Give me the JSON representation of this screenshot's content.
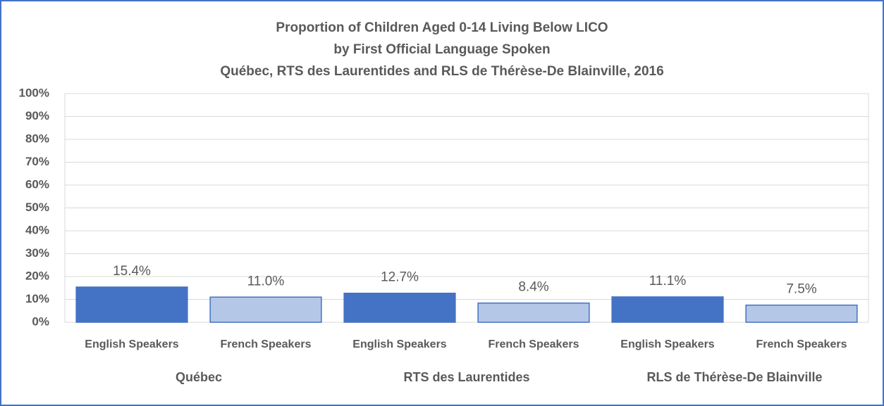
{
  "chart_data": {
    "type": "bar",
    "title": [
      "Proportion of Children Aged 0-14 Living Below LICO",
      "by First Official Language Spoken",
      "Québec, RTS des Laurentides and RLS de Thérèse-De Blainville, 2016"
    ],
    "categories": [
      "Québec",
      "RTS des Laurentides",
      "RLS de Thérèse-De Blainville"
    ],
    "series": [
      {
        "name": "English Speakers",
        "color": "#4472c4",
        "values": [
          15.4,
          12.7,
          11.1
        ],
        "value_labels": [
          "15.4%",
          "12.7%",
          "11.1%"
        ]
      },
      {
        "name": "French Speakers",
        "color": "#b4c7e7",
        "values": [
          11.0,
          8.4,
          7.5
        ],
        "value_labels": [
          "11.0%",
          "8.4%",
          "7.5%"
        ]
      }
    ],
    "ylim": [
      0,
      100
    ],
    "yticks": [
      {
        "value": 0,
        "label": "0%"
      },
      {
        "value": 10,
        "label": "10%"
      },
      {
        "value": 20,
        "label": "20%"
      },
      {
        "value": 30,
        "label": "30%"
      },
      {
        "value": 40,
        "label": "40%"
      },
      {
        "value": 50,
        "label": "50%"
      },
      {
        "value": 60,
        "label": "60%"
      },
      {
        "value": 70,
        "label": "70%"
      },
      {
        "value": 80,
        "label": "80%"
      },
      {
        "value": 90,
        "label": "90%"
      },
      {
        "value": 100,
        "label": "100%"
      }
    ],
    "grid": true
  }
}
